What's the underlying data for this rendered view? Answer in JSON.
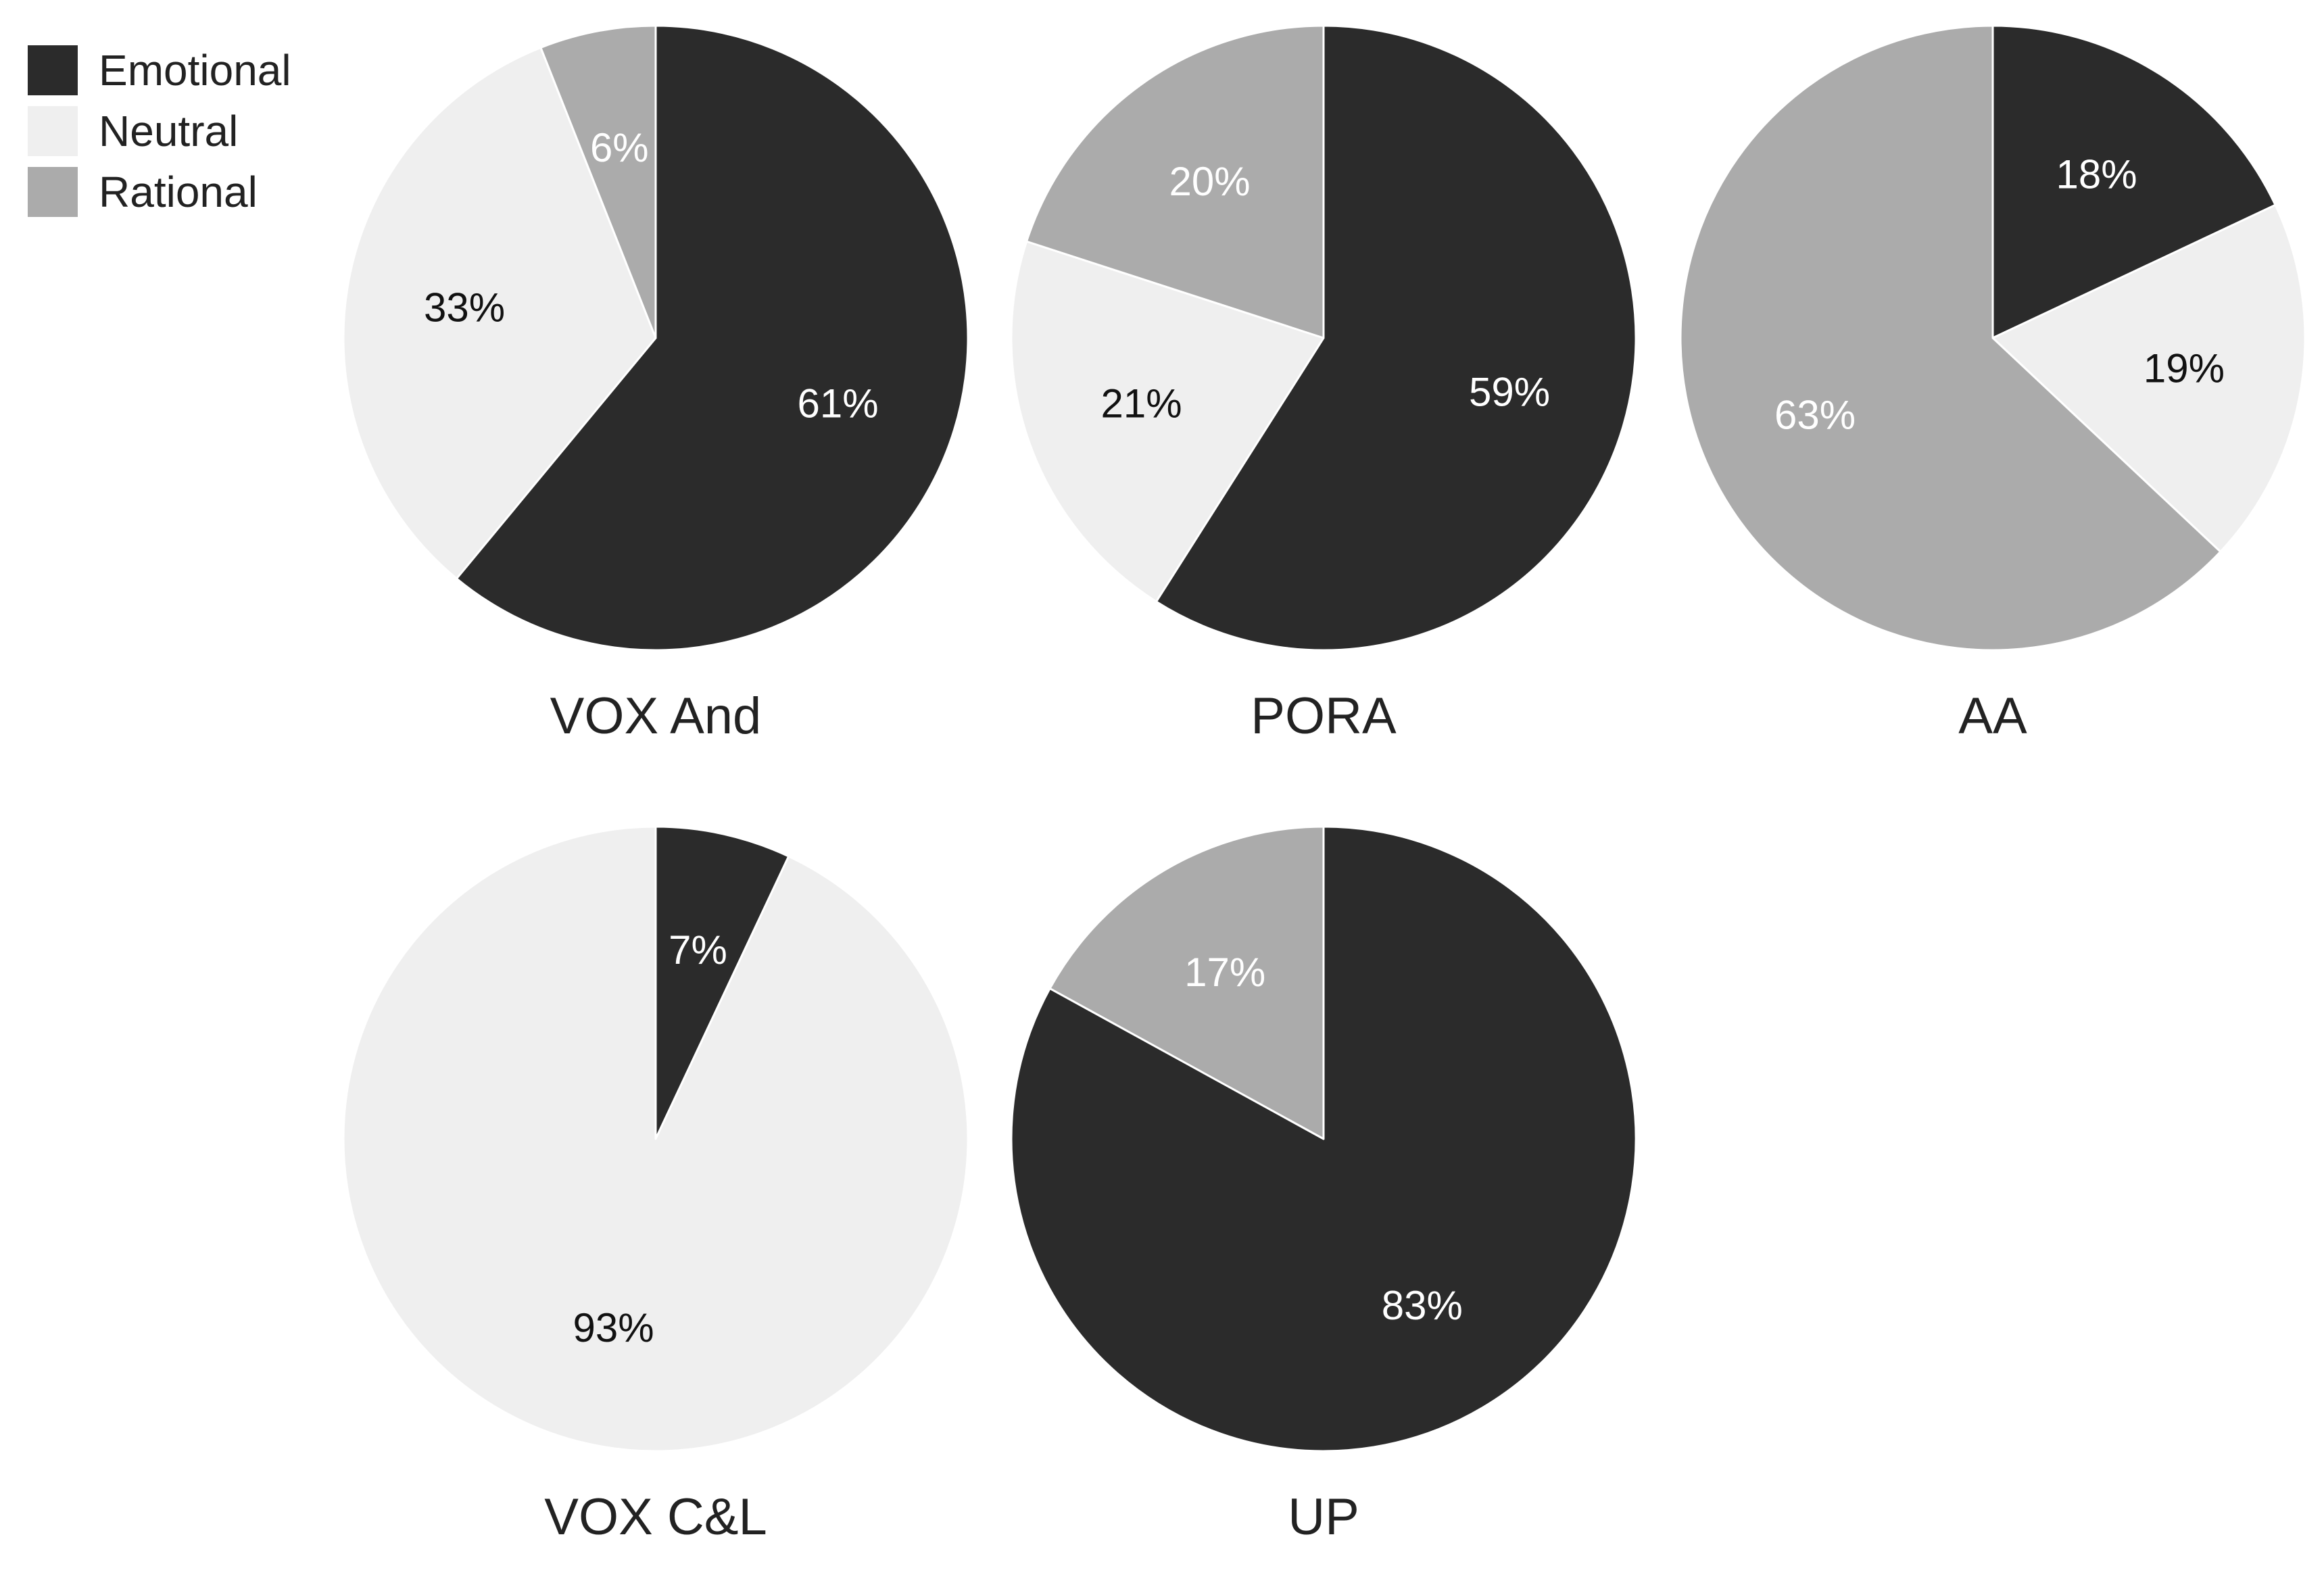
{
  "chart_data": {
    "type": "pie",
    "legend_position": "top-left",
    "categories": [
      "Emotional",
      "Neutral",
      "Rational"
    ],
    "colors": {
      "Emotional": "#2b2b2b",
      "Neutral": "#efefef",
      "Rational": "#ababab"
    },
    "pies": [
      {
        "title": "VOX And",
        "slices": [
          {
            "category": "Emotional",
            "value": 61,
            "label": "61%"
          },
          {
            "category": "Neutral",
            "value": 33,
            "label": "33%"
          },
          {
            "category": "Rational",
            "value": 6,
            "label": "6%"
          }
        ]
      },
      {
        "title": "PORA",
        "slices": [
          {
            "category": "Emotional",
            "value": 59,
            "label": "59%"
          },
          {
            "category": "Neutral",
            "value": 21,
            "label": "21%"
          },
          {
            "category": "Rational",
            "value": 20,
            "label": "20%"
          }
        ]
      },
      {
        "title": "AA",
        "slices": [
          {
            "category": "Emotional",
            "value": 18,
            "label": "18%"
          },
          {
            "category": "Neutral",
            "value": 19,
            "label": "19%"
          },
          {
            "category": "Rational",
            "value": 63,
            "label": "63%"
          }
        ]
      },
      {
        "title": "VOX C&L",
        "slices": [
          {
            "category": "Emotional",
            "value": 7,
            "label": "7%"
          },
          {
            "category": "Neutral",
            "value": 93,
            "label": "93%"
          },
          {
            "category": "Rational",
            "value": 0,
            "label": ""
          }
        ]
      },
      {
        "title": "UP",
        "slices": [
          {
            "category": "Emotional",
            "value": 83,
            "label": "83%"
          },
          {
            "category": "Neutral",
            "value": 0,
            "label": ""
          },
          {
            "category": "Rational",
            "value": 17,
            "label": "17%"
          }
        ]
      }
    ]
  }
}
